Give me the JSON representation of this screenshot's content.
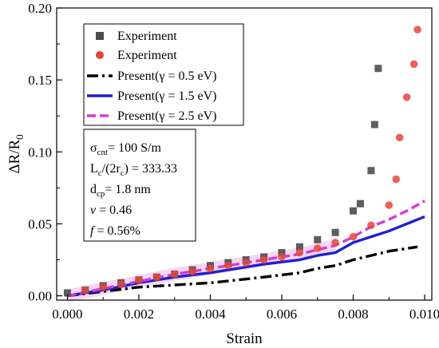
{
  "chart_data": {
    "type": "scatter",
    "xlabel": "Strain",
    "ylabel_main": "ΔR/R",
    "ylabel_sub": "0",
    "xlim": [
      -0.0003,
      0.0102
    ],
    "ylim": [
      -0.003,
      0.2
    ],
    "x_ticks": [
      0.0,
      0.002,
      0.004,
      0.006,
      0.008,
      0.01
    ],
    "x_tick_labels": [
      "0.000",
      "0.002",
      "0.004",
      "0.006",
      "0.008",
      "0.010"
    ],
    "y_ticks": [
      0.0,
      0.05,
      0.1,
      0.15,
      0.2
    ],
    "y_tick_labels": [
      "0.00",
      "0.05",
      "0.10",
      "0.15",
      "0.20"
    ],
    "scatter_series": [
      {
        "name": "Experiment",
        "marker": "square",
        "color": "#4d4d4d",
        "points": [
          [
            0.0,
            0.002
          ],
          [
            0.0005,
            0.004
          ],
          [
            0.001,
            0.007
          ],
          [
            0.0015,
            0.009
          ],
          [
            0.002,
            0.011
          ],
          [
            0.0025,
            0.013
          ],
          [
            0.003,
            0.015
          ],
          [
            0.0035,
            0.018
          ],
          [
            0.004,
            0.021
          ],
          [
            0.0045,
            0.023
          ],
          [
            0.005,
            0.025
          ],
          [
            0.0055,
            0.027
          ],
          [
            0.006,
            0.03
          ],
          [
            0.0065,
            0.034
          ],
          [
            0.007,
            0.039
          ],
          [
            0.0075,
            0.044
          ],
          [
            0.008,
            0.059
          ],
          [
            0.0082,
            0.064
          ],
          [
            0.0085,
            0.087
          ],
          [
            0.0086,
            0.119
          ],
          [
            0.0087,
            0.158
          ]
        ]
      },
      {
        "name": "Experiment",
        "marker": "circle",
        "color": "#e8453c",
        "points": [
          [
            0.0005,
            0.004
          ],
          [
            0.001,
            0.006
          ],
          [
            0.0015,
            0.008
          ],
          [
            0.002,
            0.011
          ],
          [
            0.0025,
            0.013
          ],
          [
            0.003,
            0.015
          ],
          [
            0.0035,
            0.017
          ],
          [
            0.004,
            0.019
          ],
          [
            0.0045,
            0.021
          ],
          [
            0.005,
            0.023
          ],
          [
            0.0055,
            0.025
          ],
          [
            0.006,
            0.027
          ],
          [
            0.0065,
            0.03
          ],
          [
            0.007,
            0.033
          ],
          [
            0.0075,
            0.037
          ],
          [
            0.008,
            0.041
          ],
          [
            0.0085,
            0.049
          ],
          [
            0.009,
            0.063
          ],
          [
            0.0092,
            0.081
          ],
          [
            0.0093,
            0.11
          ],
          [
            0.0095,
            0.138
          ],
          [
            0.0097,
            0.161
          ],
          [
            0.0098,
            0.185
          ]
        ]
      }
    ],
    "line_series": [
      {
        "name": "Present(γ = 0.5 eV)",
        "color": "#000000",
        "dash": "dashdot",
        "points": [
          [
            0.0,
            0.0
          ],
          [
            0.002,
            0.006
          ],
          [
            0.004,
            0.009
          ],
          [
            0.0055,
            0.013
          ],
          [
            0.0065,
            0.016
          ],
          [
            0.007,
            0.019
          ],
          [
            0.0075,
            0.021
          ],
          [
            0.008,
            0.025
          ],
          [
            0.0085,
            0.028
          ],
          [
            0.009,
            0.031
          ],
          [
            0.0098,
            0.034
          ]
        ]
      },
      {
        "name": "Present(γ = 1.5 eV)",
        "color": "#1f1fd1",
        "dash": "solid",
        "points": [
          [
            0.0,
            0.0
          ],
          [
            0.001,
            0.004
          ],
          [
            0.002,
            0.009
          ],
          [
            0.003,
            0.013
          ],
          [
            0.004,
            0.016
          ],
          [
            0.005,
            0.02
          ],
          [
            0.0055,
            0.022
          ],
          [
            0.0065,
            0.025
          ],
          [
            0.007,
            0.028
          ],
          [
            0.0075,
            0.03
          ],
          [
            0.008,
            0.037
          ],
          [
            0.0085,
            0.041
          ],
          [
            0.009,
            0.045
          ],
          [
            0.0095,
            0.05
          ],
          [
            0.01,
            0.055
          ]
        ]
      },
      {
        "name": "Present(γ = 2.5 eV)",
        "color": "#d63bd6",
        "dash": "dashed",
        "points": [
          [
            0.0,
            0.0
          ],
          [
            0.001,
            0.005
          ],
          [
            0.002,
            0.01
          ],
          [
            0.003,
            0.015
          ],
          [
            0.004,
            0.019
          ],
          [
            0.005,
            0.023
          ],
          [
            0.0055,
            0.025
          ],
          [
            0.0065,
            0.029
          ],
          [
            0.007,
            0.032
          ],
          [
            0.0075,
            0.035
          ],
          [
            0.008,
            0.041
          ],
          [
            0.0085,
            0.048
          ],
          [
            0.009,
            0.053
          ],
          [
            0.0095,
            0.059
          ],
          [
            0.01,
            0.066
          ]
        ]
      }
    ],
    "legend": {
      "placement": "top-left",
      "entries": [
        {
          "label": "Experiment",
          "symbol": "square",
          "color": "#4d4d4d"
        },
        {
          "label": "Experiment",
          "symbol": "circle",
          "color": "#e8453c"
        },
        {
          "label": "Present(γ = 0.5 eV)",
          "symbol": "dashdot",
          "color": "#000000"
        },
        {
          "label": "Present(γ = 1.5 eV)",
          "symbol": "solid",
          "color": "#1f1fd1"
        },
        {
          "label": "Present(γ = 2.5 eV)",
          "symbol": "dashed",
          "color": "#d63bd6"
        }
      ]
    },
    "info_box": {
      "lines": [
        {
          "parts": [
            {
              "t": "σ"
            },
            {
              "t": "cnt",
              "sub": true
            },
            {
              "t": "= 100 S/m"
            }
          ]
        },
        {
          "parts": [
            {
              "t": "L"
            },
            {
              "t": "c",
              "sub": true
            },
            {
              "t": "/(2r"
            },
            {
              "t": "c",
              "sub": true
            },
            {
              "t": ") = 333.33"
            }
          ]
        },
        {
          "parts": [
            {
              "t": "d"
            },
            {
              "t": "cp",
              "sub": true
            },
            {
              "t": "= 1.8 nm"
            }
          ]
        },
        {
          "parts": [
            {
              "t": "v",
              "italic": true
            },
            {
              "t": " =  0.46"
            }
          ]
        },
        {
          "parts": [
            {
              "t": "f",
              "italic": true
            },
            {
              "t": " = 0.56%"
            }
          ]
        }
      ]
    },
    "grid": false,
    "background": "#ffffff"
  }
}
